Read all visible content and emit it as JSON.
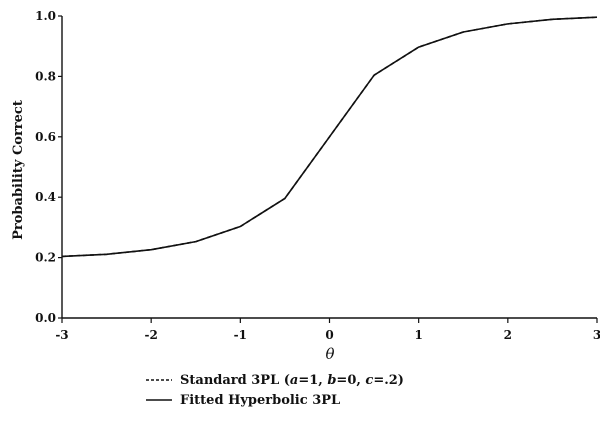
{
  "chart_data": {
    "type": "line",
    "xlabel": "θ",
    "ylabel": "Probability Correct",
    "xlim": [
      -3,
      3
    ],
    "ylim": [
      0,
      1
    ],
    "x_ticks": [
      -3,
      -2,
      -1,
      0,
      1,
      2,
      3
    ],
    "x_tick_labels": [
      "-3",
      "-2",
      "-1",
      "0",
      "1",
      "2",
      "3"
    ],
    "y_ticks": [
      0,
      0.2,
      0.4,
      0.6,
      0.8,
      1.0
    ],
    "y_tick_labels": [
      "0.0",
      "0.2",
      "0.4",
      "0.6",
      "0.8",
      "1.0"
    ],
    "grid": false,
    "legend_position": "bottom",
    "series": [
      {
        "name": "Standard 3PL (a=1, b=0, c=.2)",
        "legend_parts": [
          "Standard 3PL (",
          "a",
          "=1, ",
          "b",
          "=0, ",
          "c",
          "=.2)"
        ],
        "style": "dashed",
        "color": "#111111",
        "x": [
          -3,
          -2.5,
          -2,
          -1.5,
          -1,
          -0.5,
          0,
          0.5,
          1,
          1.5,
          2,
          2.5,
          3
        ],
        "y": [
          0.204,
          0.211,
          0.226,
          0.253,
          0.303,
          0.396,
          0.6,
          0.804,
          0.897,
          0.947,
          0.974,
          0.989,
          0.996
        ]
      },
      {
        "name": "Fitted Hyperbolic 3PL",
        "style": "solid",
        "color": "#111111",
        "x": [
          -3,
          -2.5,
          -2,
          -1.5,
          -1,
          -0.5,
          0,
          0.5,
          1,
          1.5,
          2,
          2.5,
          3
        ],
        "y": [
          0.204,
          0.211,
          0.226,
          0.253,
          0.303,
          0.396,
          0.6,
          0.804,
          0.897,
          0.947,
          0.974,
          0.989,
          0.996
        ]
      }
    ]
  }
}
